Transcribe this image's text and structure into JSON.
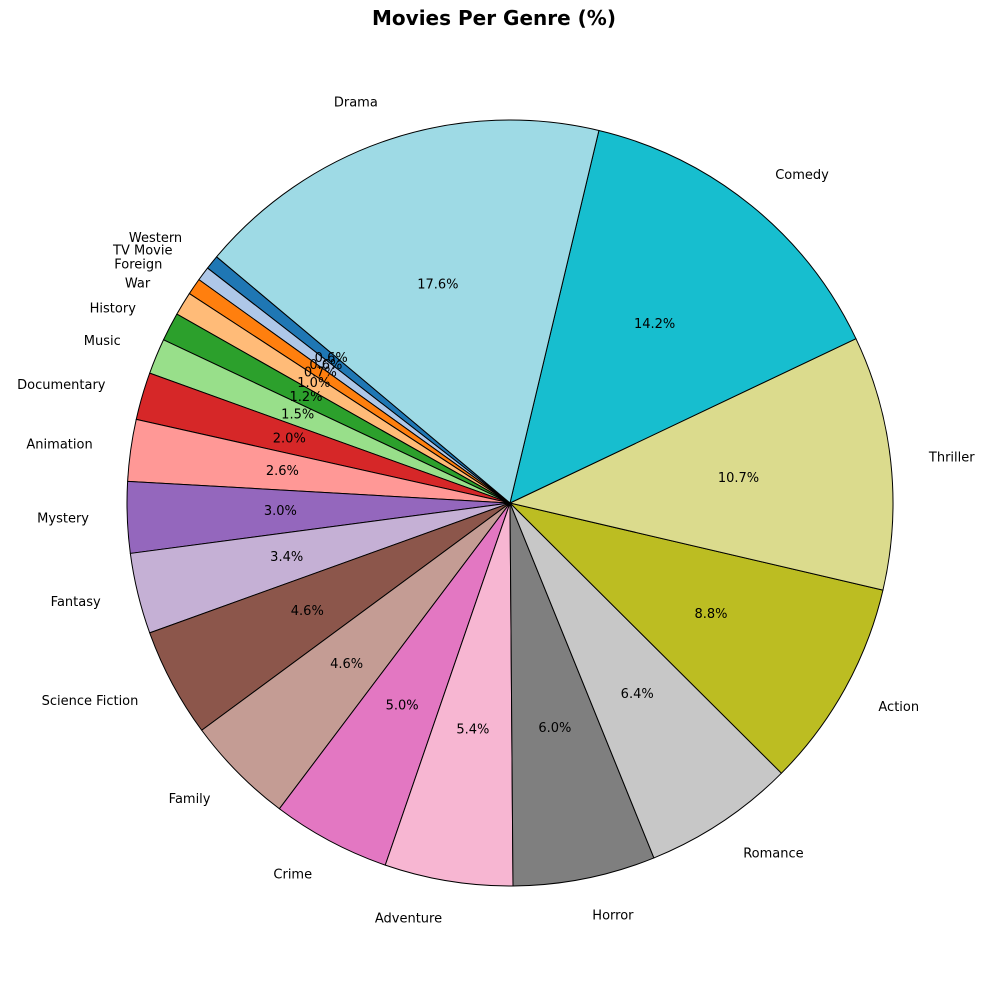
{
  "chart_data": {
    "type": "pie",
    "title": "Movies Per Genre (%)",
    "start_angle_deg": 140,
    "direction": "counterclockwise",
    "edge_color": "#000000",
    "label_format": "{value}%",
    "slices": [
      {
        "label": "Western",
        "value": 0.6,
        "pct_label": "0.6%",
        "color": "#1f77b4"
      },
      {
        "label": "TV Movie",
        "value": 0.6,
        "pct_label": "0.6%",
        "color": "#aec7e8"
      },
      {
        "label": "Foreign",
        "value": 0.7,
        "pct_label": "0.7%",
        "color": "#ff7f0e"
      },
      {
        "label": "War",
        "value": 1.0,
        "pct_label": "1.0%",
        "color": "#ffbb78"
      },
      {
        "label": "History",
        "value": 1.2,
        "pct_label": "1.2%",
        "color": "#2ca02c"
      },
      {
        "label": "Music",
        "value": 1.5,
        "pct_label": "1.5%",
        "color": "#98df8a"
      },
      {
        "label": "Documentary",
        "value": 2.0,
        "pct_label": "2.0%",
        "color": "#d62728"
      },
      {
        "label": "Animation",
        "value": 2.6,
        "pct_label": "2.6%",
        "color": "#ff9896"
      },
      {
        "label": "Mystery",
        "value": 3.0,
        "pct_label": "3.0%",
        "color": "#9467bd"
      },
      {
        "label": "Fantasy",
        "value": 3.4,
        "pct_label": "3.4%",
        "color": "#c5b0d5"
      },
      {
        "label": "Science Fiction",
        "value": 4.6,
        "pct_label": "4.6%",
        "color": "#8c564b"
      },
      {
        "label": "Family",
        "value": 4.6,
        "pct_label": "4.6%",
        "color": "#c49c94"
      },
      {
        "label": "Crime",
        "value": 5.0,
        "pct_label": "5.0%",
        "color": "#e377c2"
      },
      {
        "label": "Adventure",
        "value": 5.4,
        "pct_label": "5.4%",
        "color": "#f7b6d2"
      },
      {
        "label": "Horror",
        "value": 6.0,
        "pct_label": "6.0%",
        "color": "#7f7f7f"
      },
      {
        "label": "Romance",
        "value": 6.4,
        "pct_label": "6.4%",
        "color": "#c7c7c7"
      },
      {
        "label": "Action",
        "value": 8.8,
        "pct_label": "8.8%",
        "color": "#bcbd22"
      },
      {
        "label": "Thriller",
        "value": 10.7,
        "pct_label": "10.7%",
        "color": "#dbdb8d"
      },
      {
        "label": "Comedy",
        "value": 14.2,
        "pct_label": "14.2%",
        "color": "#17becf"
      },
      {
        "label": "Drama",
        "value": 17.6,
        "pct_label": "17.6%",
        "color": "#9edae5"
      }
    ]
  }
}
